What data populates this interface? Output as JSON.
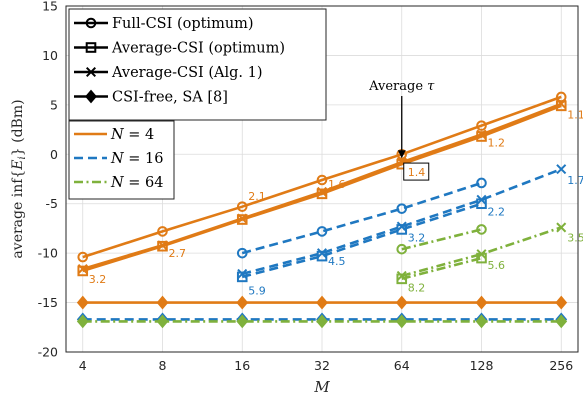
{
  "chart_data": {
    "type": "line",
    "xlabel": "M",
    "ylabel": "average inf{E_i} (dBm)",
    "x": [
      4,
      8,
      16,
      32,
      64,
      128,
      256
    ],
    "x_ticks": [
      "4",
      "8",
      "16",
      "32",
      "64",
      "128",
      "256"
    ],
    "x_scale": "log2",
    "ylim": [
      -20,
      15
    ],
    "y_ticks": [
      "-20",
      "-15",
      "-10",
      "-5",
      "0",
      "5",
      "10",
      "15"
    ],
    "grid": true,
    "colors": {
      "N4": "#e07b16",
      "N16": "#1f78c1",
      "N64": "#7fb13c",
      "legend": "#000000"
    },
    "legend_markers": [
      {
        "label": "Full-CSI (optimum)",
        "marker": "circle"
      },
      {
        "label": "Average-CSI (optimum)",
        "marker": "square"
      },
      {
        "label": "Average-CSI (Alg. 1)",
        "marker": "x"
      },
      {
        "label": "CSI-free, SA [8]",
        "marker": "diamond"
      }
    ],
    "legend_lines": [
      {
        "label": "N = 4",
        "N": "4",
        "color": "#e07b16",
        "dash": "solid"
      },
      {
        "label": "N = 16",
        "N": "16",
        "color": "#1f78c1",
        "dash": "dashed"
      },
      {
        "label": "N = 64",
        "N": "64",
        "color": "#7fb13c",
        "dash": "dashdot"
      }
    ],
    "series": [
      {
        "N": 4,
        "method": "Full-CSI (optimum)",
        "marker": "circle",
        "x": [
          4,
          8,
          16,
          32,
          64,
          128,
          256
        ],
        "y": [
          -10.4,
          -7.8,
          -5.3,
          -2.6,
          0.0,
          2.9,
          5.8
        ]
      },
      {
        "N": 4,
        "method": "Average-CSI (optimum)",
        "marker": "square",
        "x": [
          4,
          8,
          16,
          32,
          64,
          128,
          256
        ],
        "y": [
          -11.8,
          -9.3,
          -6.6,
          -4.0,
          -1.0,
          1.8,
          4.9
        ]
      },
      {
        "N": 4,
        "method": "Average-CSI (Alg. 1)",
        "marker": "x",
        "x": [
          4,
          8,
          16,
          32,
          64,
          128,
          256
        ],
        "y": [
          -11.6,
          -9.2,
          -6.5,
          -3.8,
          -0.8,
          2.0,
          5.1
        ]
      },
      {
        "N": 4,
        "method": "CSI-free, SA [8]",
        "marker": "diamond",
        "x": [
          4,
          8,
          16,
          32,
          64,
          128,
          256
        ],
        "y": [
          -15.0,
          -15.0,
          -15.0,
          -15.0,
          -15.0,
          -15.0,
          -15.0
        ]
      },
      {
        "N": 16,
        "method": "Full-CSI (optimum)",
        "marker": "circle",
        "x": [
          16,
          32,
          64,
          128
        ],
        "y": [
          -10.0,
          -7.8,
          -5.5,
          -2.9
        ]
      },
      {
        "N": 16,
        "method": "Average-CSI (optimum)",
        "marker": "square",
        "x": [
          16,
          32,
          64,
          128
        ],
        "y": [
          -12.4,
          -10.3,
          -7.6,
          -5.0
        ]
      },
      {
        "N": 16,
        "method": "Average-CSI (Alg. 1)",
        "marker": "x",
        "x": [
          16,
          32,
          64,
          128,
          256
        ],
        "y": [
          -12.1,
          -10.0,
          -7.3,
          -4.6,
          -1.5
        ]
      },
      {
        "N": 16,
        "method": "CSI-free, SA [8]",
        "marker": "diamond",
        "x": [
          4,
          8,
          16,
          32,
          64,
          128,
          256
        ],
        "y": [
          -16.7,
          -16.7,
          -16.7,
          -16.7,
          -16.7,
          -16.7,
          -16.7
        ]
      },
      {
        "N": 64,
        "method": "Full-CSI (optimum)",
        "marker": "circle",
        "x": [
          64,
          128
        ],
        "y": [
          -9.6,
          -7.6
        ]
      },
      {
        "N": 64,
        "method": "Average-CSI (optimum)",
        "marker": "square",
        "x": [
          64,
          128
        ],
        "y": [
          -12.6,
          -10.5
        ]
      },
      {
        "N": 64,
        "method": "Average-CSI (Alg. 1)",
        "marker": "x",
        "x": [
          64,
          128,
          256
        ],
        "y": [
          -12.3,
          -10.1,
          -7.4
        ]
      },
      {
        "N": 64,
        "method": "CSI-free, SA [8]",
        "marker": "diamond",
        "x": [
          4,
          8,
          16,
          32,
          64,
          128,
          256
        ],
        "y": [
          -16.9,
          -16.9,
          -16.9,
          -16.9,
          -16.9,
          -16.9,
          -16.9
        ]
      }
    ],
    "tau_labels": [
      {
        "N": 4,
        "x": 4,
        "y": -12.6,
        "text": "3.2"
      },
      {
        "N": 4,
        "x": 8,
        "y": -10.0,
        "text": "2.7"
      },
      {
        "N": 4,
        "x": 16,
        "y": -4.2,
        "text": "2.1"
      },
      {
        "N": 4,
        "x": 32,
        "y": -3.0,
        "text": "1.6"
      },
      {
        "N": 4,
        "x": 64,
        "y": -1.8,
        "text": "1.4",
        "boxed": true
      },
      {
        "N": 4,
        "x": 128,
        "y": 1.2,
        "text": "1.2"
      },
      {
        "N": 4,
        "x": 256,
        "y": 4.0,
        "text": "1.1"
      },
      {
        "N": 16,
        "x": 16,
        "y": -13.8,
        "text": "5.9"
      },
      {
        "N": 16,
        "x": 32,
        "y": -10.8,
        "text": "4.5"
      },
      {
        "N": 16,
        "x": 64,
        "y": -8.4,
        "text": "3.2"
      },
      {
        "N": 16,
        "x": 128,
        "y": -5.8,
        "text": "2.2"
      },
      {
        "N": 16,
        "x": 256,
        "y": -2.6,
        "text": "1.7"
      },
      {
        "N": 64,
        "x": 64,
        "y": -13.5,
        "text": "8.2"
      },
      {
        "N": 64,
        "x": 128,
        "y": -11.2,
        "text": "5.6"
      },
      {
        "N": 64,
        "x": 256,
        "y": -8.4,
        "text": "3.5"
      }
    ],
    "annotation": {
      "text": "Average τ",
      "x": 64,
      "y": 6.5,
      "arrow_to_y": -0.4
    }
  }
}
